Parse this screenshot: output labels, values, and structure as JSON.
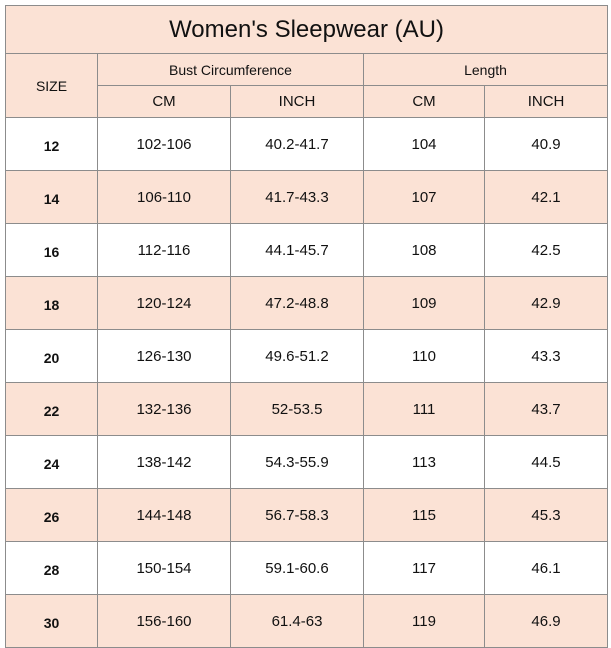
{
  "title": "Women's Sleepwear (AU)",
  "header": {
    "size_label": "SIZE",
    "bust_label": "Bust Circumference",
    "length_label": "Length",
    "bust_cm": "CM",
    "bust_inch": "INCH",
    "length_cm": "CM",
    "length_inch": "INCH"
  },
  "colors": {
    "header_bg": "#fbe2d5",
    "alt_row_bg": "#fbe2d5",
    "border": "#8c8c8c"
  },
  "rows": [
    {
      "size": "12",
      "bust_cm": "102-106",
      "bust_inch": "40.2-41.7",
      "length_cm": "104",
      "length_inch": "40.9"
    },
    {
      "size": "14",
      "bust_cm": "106-110",
      "bust_inch": "41.7-43.3",
      "length_cm": "107",
      "length_inch": "42.1"
    },
    {
      "size": "16",
      "bust_cm": "112-116",
      "bust_inch": "44.1-45.7",
      "length_cm": "108",
      "length_inch": "42.5"
    },
    {
      "size": "18",
      "bust_cm": "120-124",
      "bust_inch": "47.2-48.8",
      "length_cm": "109",
      "length_inch": "42.9"
    },
    {
      "size": "20",
      "bust_cm": "126-130",
      "bust_inch": "49.6-51.2",
      "length_cm": "110",
      "length_inch": "43.3"
    },
    {
      "size": "22",
      "bust_cm": "132-136",
      "bust_inch": "52-53.5",
      "length_cm": "111",
      "length_inch": "43.7"
    },
    {
      "size": "24",
      "bust_cm": "138-142",
      "bust_inch": "54.3-55.9",
      "length_cm": "113",
      "length_inch": "44.5"
    },
    {
      "size": "26",
      "bust_cm": "144-148",
      "bust_inch": "56.7-58.3",
      "length_cm": "115",
      "length_inch": "45.3"
    },
    {
      "size": "28",
      "bust_cm": "150-154",
      "bust_inch": "59.1-60.6",
      "length_cm": "117",
      "length_inch": "46.1"
    },
    {
      "size": "30",
      "bust_cm": "156-160",
      "bust_inch": "61.4-63",
      "length_cm": "119",
      "length_inch": "46.9"
    }
  ]
}
